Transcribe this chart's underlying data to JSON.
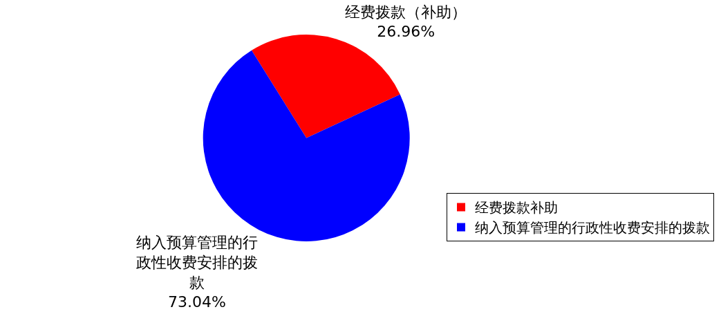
{
  "chart_data": {
    "type": "pie",
    "categories": [
      "经费拨款补助",
      "纳入预算管理的行政性收费安排的拨款"
    ],
    "values": [
      26.96,
      73.04
    ],
    "colors": [
      "#ff0000",
      "#0000ff"
    ],
    "value_labels": [
      "经费拨款（补助） 26.96%",
      "纳入预算管理的行政性收费安排的拨款 73.04%"
    ],
    "legend": "bottom right"
  }
}
